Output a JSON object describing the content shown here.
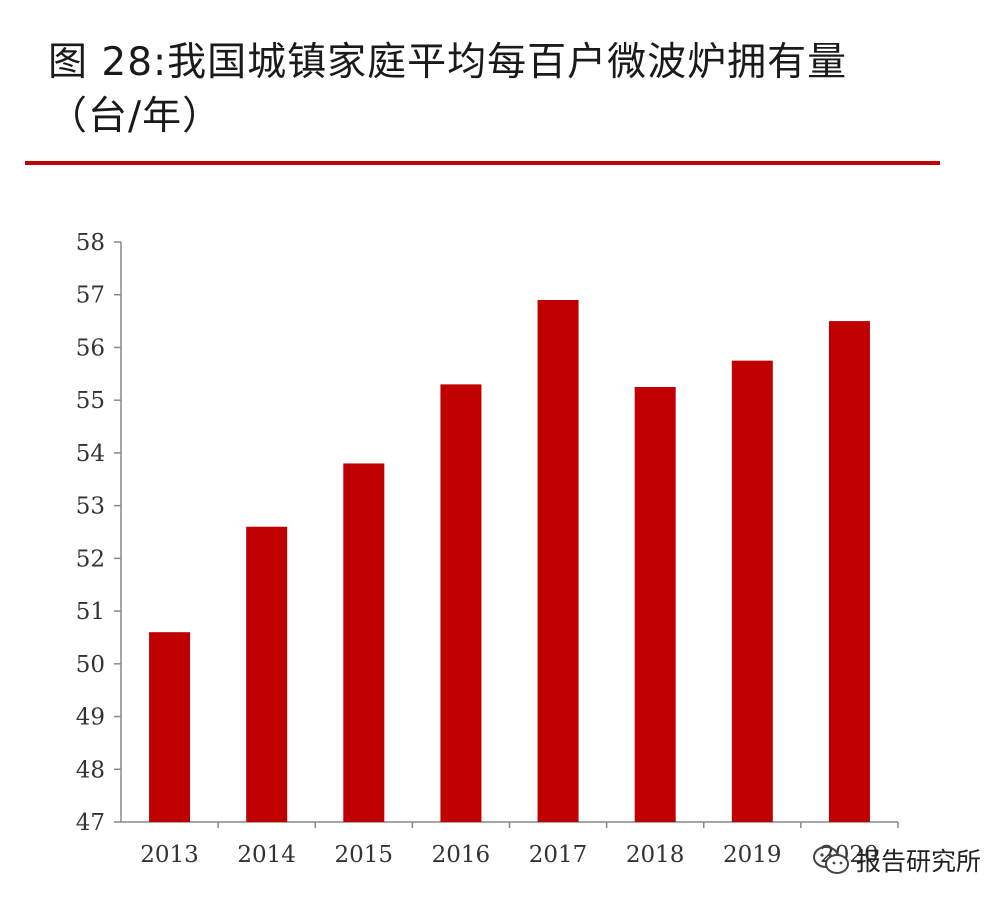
{
  "header": {
    "title_line1": "图 28:我国城镇家庭平均每百户微波炉拥有量",
    "title_line2": "（台/年）"
  },
  "chart_data": {
    "type": "bar",
    "title": "图 28:我国城镇家庭平均每百户微波炉拥有量（台/年）",
    "xlabel": "",
    "ylabel": "",
    "categories": [
      "2013",
      "2014",
      "2015",
      "2016",
      "2017",
      "2018",
      "2019",
      "2020"
    ],
    "values": [
      50.6,
      52.6,
      53.8,
      55.3,
      56.9,
      55.25,
      55.75,
      56.5
    ],
    "ylim": [
      47,
      58
    ],
    "yticks": [
      47,
      48,
      49,
      50,
      51,
      52,
      53,
      54,
      55,
      56,
      57,
      58
    ],
    "grid": false,
    "bar_color": "#c00000"
  },
  "watermark": {
    "text": "报告研究所",
    "icon": "wechat-icon"
  }
}
